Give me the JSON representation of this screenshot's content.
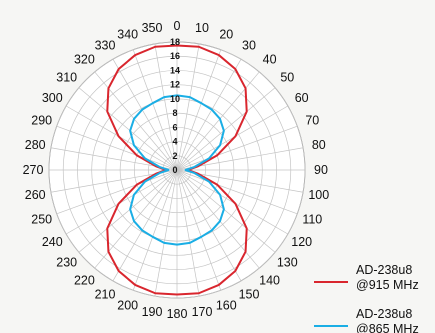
{
  "chart_data": {
    "type": "polar",
    "angle_ticks": [
      "0",
      "10",
      "20",
      "30",
      "40",
      "50",
      "60",
      "70",
      "80",
      "90",
      "100",
      "110",
      "120",
      "130",
      "140",
      "150",
      "160",
      "170",
      "180",
      "190",
      "200",
      "210",
      "220",
      "230",
      "240",
      "250",
      "260",
      "270",
      "280",
      "290",
      "300",
      "310",
      "320",
      "330",
      "340",
      "350"
    ],
    "radial_ticks": [
      "0",
      "2",
      "4",
      "6",
      "8",
      "10",
      "12",
      "14",
      "16",
      "18"
    ],
    "rlim": [
      0,
      18
    ],
    "angle_direction": "clockwise",
    "zero_location": "top",
    "grid": true,
    "legend_position": "bottom-right",
    "series": [
      {
        "name": "AD-238u8\n@915 MHz",
        "color": "#d9262e",
        "angles": [
          0,
          10,
          20,
          30,
          40,
          50,
          60,
          70,
          80,
          90,
          100,
          110,
          120,
          130,
          140,
          150,
          160,
          170,
          180,
          190,
          200,
          210,
          220,
          230,
          240,
          250,
          260,
          270,
          280,
          290,
          300,
          310,
          320,
          330,
          340,
          350
        ],
        "values": [
          17.5,
          17.6,
          17.2,
          16.4,
          15.0,
          12.8,
          9.5,
          6.0,
          3.0,
          1.5,
          3.0,
          6.0,
          9.5,
          12.8,
          15.0,
          16.4,
          17.2,
          17.6,
          17.5,
          17.6,
          17.2,
          16.4,
          15.0,
          12.8,
          9.5,
          6.0,
          3.0,
          1.5,
          3.0,
          6.0,
          9.5,
          12.8,
          15.0,
          16.4,
          17.2,
          17.6
        ]
      },
      {
        "name": "AD-238u8\n@865 MHz",
        "color": "#1aaee5",
        "angles": [
          0,
          10,
          20,
          30,
          40,
          50,
          60,
          70,
          80,
          90,
          100,
          110,
          120,
          130,
          140,
          150,
          160,
          170,
          180,
          190,
          200,
          210,
          220,
          230,
          240,
          250,
          260,
          270,
          280,
          290,
          300,
          310,
          320,
          330,
          340,
          350
        ],
        "values": [
          10.5,
          10.4,
          10.0,
          9.8,
          9.4,
          8.6,
          7.0,
          4.8,
          2.5,
          1.2,
          2.5,
          4.8,
          7.0,
          8.6,
          9.4,
          9.8,
          10.0,
          10.4,
          10.5,
          10.4,
          10.0,
          9.8,
          9.4,
          8.6,
          7.0,
          4.8,
          2.5,
          1.2,
          2.5,
          4.8,
          7.0,
          8.6,
          9.4,
          9.8,
          10.0,
          10.4
        ]
      }
    ]
  }
}
